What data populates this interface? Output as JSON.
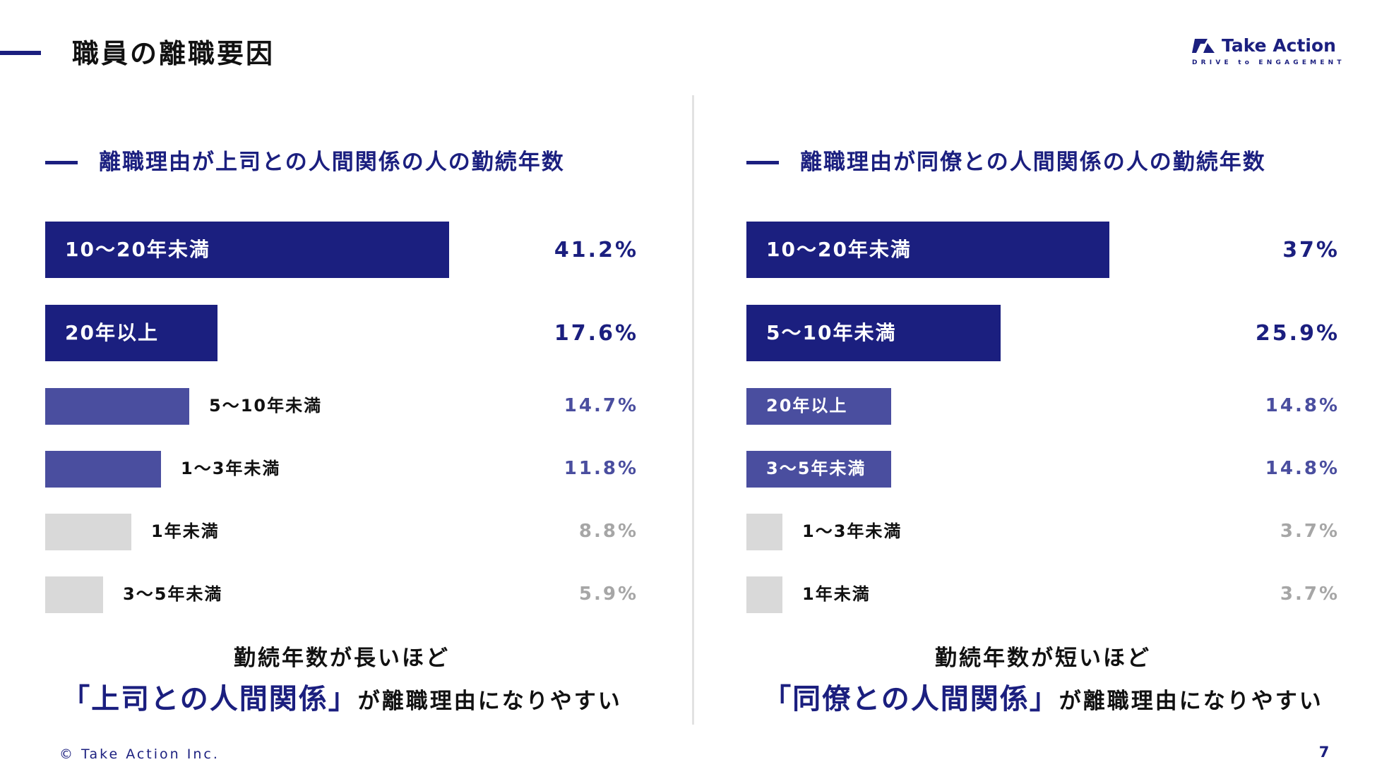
{
  "page": {
    "title": "職員の離職要因",
    "page_number": "7",
    "copyright": "© Take Action Inc."
  },
  "logo": {
    "name": "Take Action",
    "tagline": "DRIVE to ENGAGEMENT"
  },
  "colors": {
    "primary": "#1b1f7f",
    "secondary": "#4a4e9f",
    "muted": "#d9d9d9",
    "muted_text": "#a6a6a6",
    "divider": "#e2e2e2"
  },
  "left": {
    "heading": "離職理由が上司との人間関係の人の勤続年数",
    "conclusion_line1": "勤続年数が長いほど",
    "conclusion_highlight": "「上司との人間関係」",
    "conclusion_rest": "が離職理由になりやすい"
  },
  "right": {
    "heading": "離職理由が同僚との人間関係の人の勤続年数",
    "conclusion_line1": "勤続年数が短いほど",
    "conclusion_highlight": "「同僚との人間関係」",
    "conclusion_rest": "が離職理由になりやすい"
  },
  "chart_data": [
    {
      "type": "bar",
      "orientation": "horizontal",
      "title": "離職理由が上司との人間関係の人の勤続年数",
      "unit": "%",
      "xlim": [
        0,
        41.2
      ],
      "categories": [
        "10〜20年未満",
        "20年以上",
        "5〜10年未満",
        "1〜3年未満",
        "1年未満",
        "3〜5年未満"
      ],
      "values": [
        41.2,
        17.6,
        14.7,
        11.8,
        8.8,
        5.9
      ],
      "value_labels": [
        "41.2%",
        "17.6%",
        "14.7%",
        "11.8%",
        "8.8%",
        "5.9%"
      ],
      "tiers": [
        "primary",
        "primary",
        "secondary",
        "secondary",
        "muted",
        "muted"
      ]
    },
    {
      "type": "bar",
      "orientation": "horizontal",
      "title": "離職理由が同僚との人間関係の人の勤続年数",
      "unit": "%",
      "xlim": [
        0,
        41.2
      ],
      "categories": [
        "10〜20年未満",
        "5〜10年未満",
        "20年以上",
        "3〜5年未満",
        "1〜3年未満",
        "1年未満"
      ],
      "values": [
        37,
        25.9,
        14.8,
        14.8,
        3.7,
        3.7
      ],
      "value_labels": [
        "37%",
        "25.9%",
        "14.8%",
        "14.8%",
        "3.7%",
        "3.7%"
      ],
      "tiers": [
        "primary",
        "primary",
        "secondary",
        "secondary",
        "muted",
        "muted"
      ]
    }
  ]
}
